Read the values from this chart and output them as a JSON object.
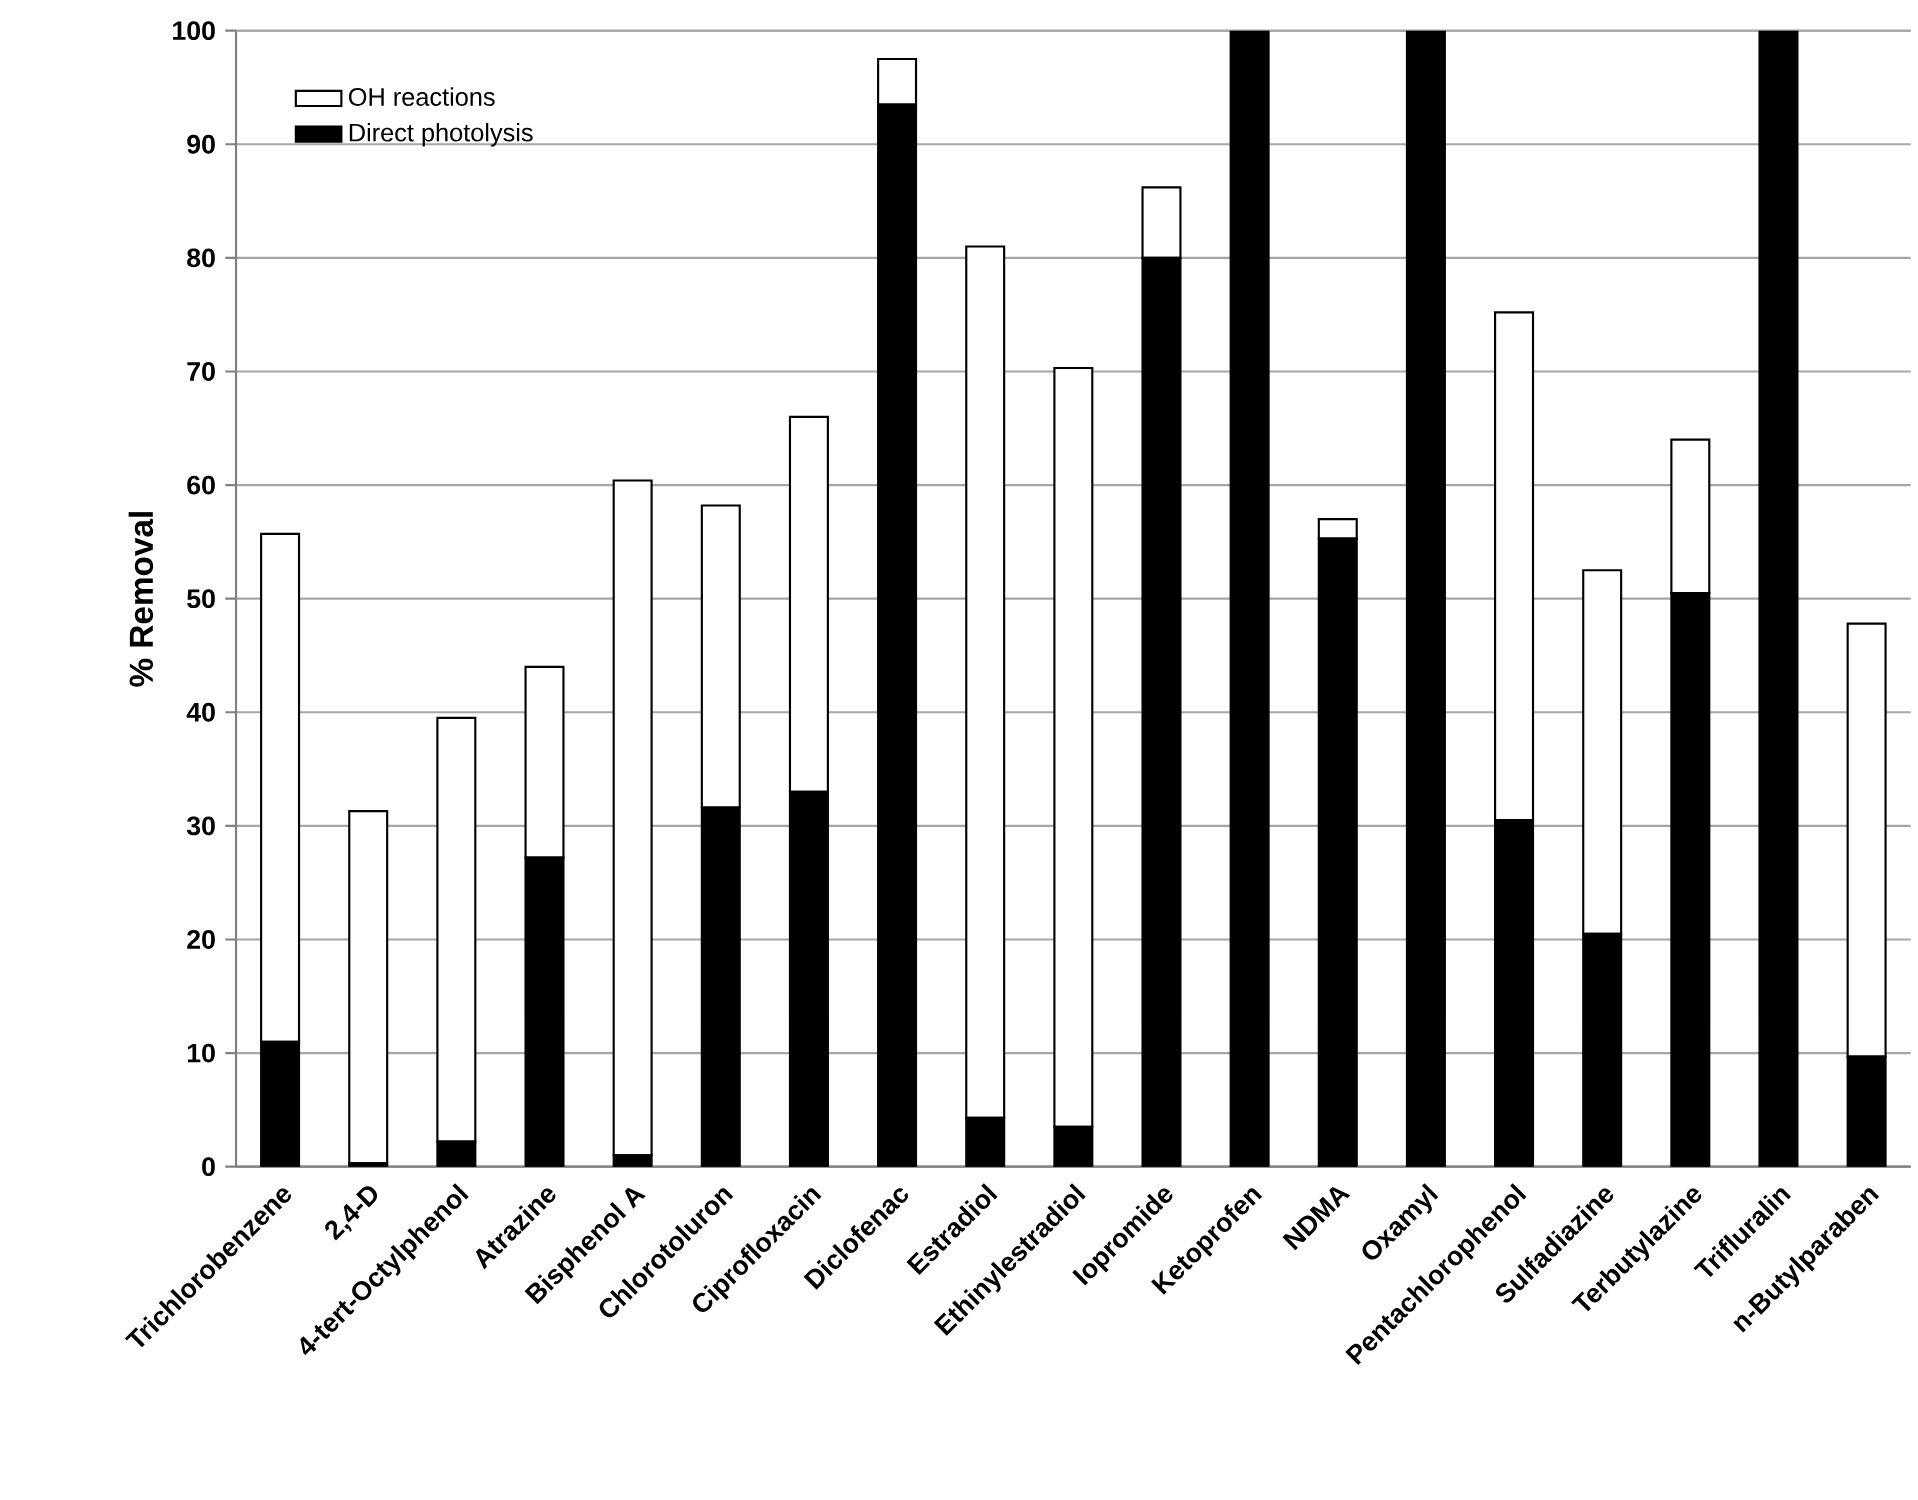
{
  "chart_data": {
    "type": "bar",
    "stacked": true,
    "ylabel": "% Removal",
    "categories": [
      "Trichlorobenzene",
      "2,4-D",
      "4-tert-Octylphenol",
      "Atrazine",
      "Bisphenol A",
      "Chlorotoluron",
      "Ciprofloxacin",
      "Diclofenac",
      "Estradiol",
      "Ethinylestradiol",
      "Iopromide",
      "Ketoprofen",
      "NDMA",
      "Oxamyl",
      "Pentachlorophenol",
      "Sulfadiazine",
      "Terbutylazine",
      "Trifluralin",
      "n-Butylparaben"
    ],
    "series": [
      {
        "name": "Direct photolysis",
        "color": "#000000",
        "values": [
          11,
          0.3,
          2.2,
          27.2,
          1,
          31.6,
          33,
          93.5,
          4.3,
          3.5,
          80,
          100,
          55.3,
          100,
          30.5,
          20.5,
          50.5,
          100,
          9.7
        ]
      },
      {
        "name": "OH reactions",
        "color": "#ffffff",
        "values": [
          44.7,
          31,
          37.3,
          16.8,
          59.4,
          26.6,
          33,
          4,
          76.7,
          66.8,
          6.2,
          0,
          1.7,
          0,
          44.7,
          32,
          13.5,
          0,
          38.1
        ]
      }
    ],
    "ylim": [
      0,
      100
    ],
    "yticks": [
      0,
      10,
      20,
      30,
      40,
      50,
      60,
      70,
      80,
      90,
      100
    ],
    "grid": "y",
    "legend": "top left"
  }
}
